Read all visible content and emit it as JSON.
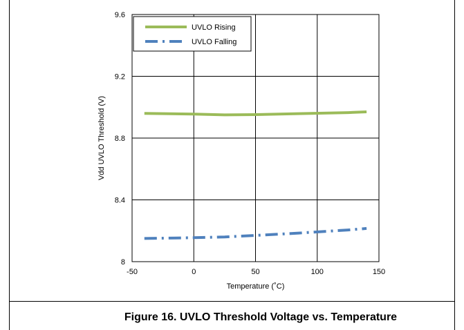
{
  "figure": {
    "caption": "Figure 16. UVLO Threshold Voltage vs. Temperature"
  },
  "chart_data": {
    "type": "line",
    "title": "",
    "xlabel": "Temperature (˚C)",
    "ylabel": "Vdd UVLO Threshold (V)",
    "xlim": [
      -50,
      150
    ],
    "ylim": [
      8,
      9.6
    ],
    "x_ticks": [
      "-50",
      "0",
      "50",
      "100",
      "150"
    ],
    "y_ticks": [
      "8",
      "8.4",
      "8.8",
      "9.2",
      "9.6"
    ],
    "x_tick_values": [
      -50,
      0,
      50,
      100,
      150
    ],
    "y_tick_values": [
      8,
      8.4,
      8.8,
      9.2,
      9.6
    ],
    "grid": true,
    "legend_position": "top-left",
    "series": [
      {
        "name": "UVLO Rising",
        "color": "#9bbb59",
        "style": "solid",
        "x": [
          -40,
          0,
          25,
          50,
          85,
          125,
          140
        ],
        "y": [
          8.96,
          8.955,
          8.95,
          8.952,
          8.958,
          8.965,
          8.97
        ]
      },
      {
        "name": "UVLO Falling",
        "color": "#4f81bd",
        "style": "dash-dot",
        "x": [
          -40,
          0,
          25,
          50,
          85,
          125,
          140
        ],
        "y": [
          8.15,
          8.155,
          8.16,
          8.17,
          8.185,
          8.205,
          8.215
        ]
      }
    ]
  }
}
